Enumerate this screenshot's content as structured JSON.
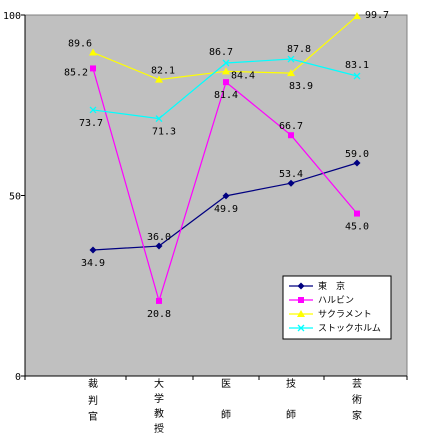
{
  "chart_data": {
    "type": "line",
    "categories": [
      "裁判官",
      "大学教授",
      "医師",
      "技師",
      "芸術家"
    ],
    "ylim": [
      0,
      100
    ],
    "yticks": [
      0,
      50,
      100
    ],
    "grid": false,
    "legend_position": "bottom-right",
    "series": [
      {
        "name": "東　京",
        "color": "#000080",
        "marker": "diamond",
        "values": [
          34.9,
          36.0,
          49.9,
          53.4,
          59.0
        ]
      },
      {
        "name": "ハルビン",
        "color": "#ff00ff",
        "marker": "square",
        "values": [
          85.2,
          20.8,
          81.4,
          66.7,
          45.0
        ]
      },
      {
        "name": "サクラメント",
        "color": "#ffff00",
        "marker": "triangle",
        "values": [
          89.6,
          82.1,
          84.4,
          83.9,
          99.7
        ]
      },
      {
        "name": "ストックホルム",
        "color": "#00ffff",
        "marker": "x",
        "values": [
          73.7,
          71.3,
          86.7,
          87.8,
          83.1
        ]
      }
    ]
  }
}
